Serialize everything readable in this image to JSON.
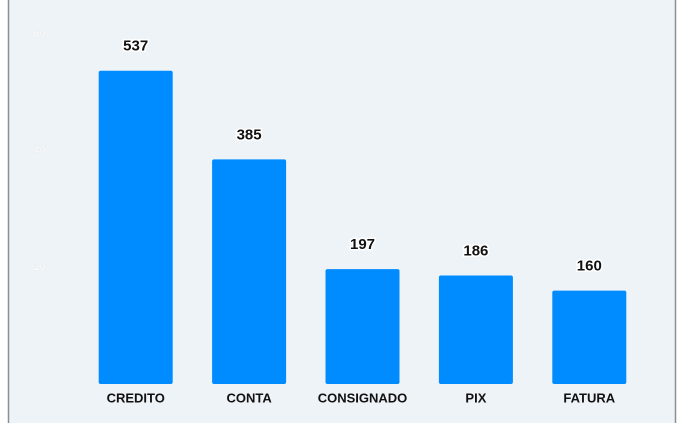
{
  "chart_data": {
    "type": "bar",
    "categories": [
      "CREDITO",
      "CONTA",
      "CONSIGNADO",
      "PIX",
      "FATURA"
    ],
    "values": [
      537,
      385,
      197,
      186,
      160
    ],
    "color": "#008cff",
    "ylim": [
      0,
      600
    ],
    "yticks": [
      0,
      200,
      400,
      600
    ],
    "grid": false
  }
}
